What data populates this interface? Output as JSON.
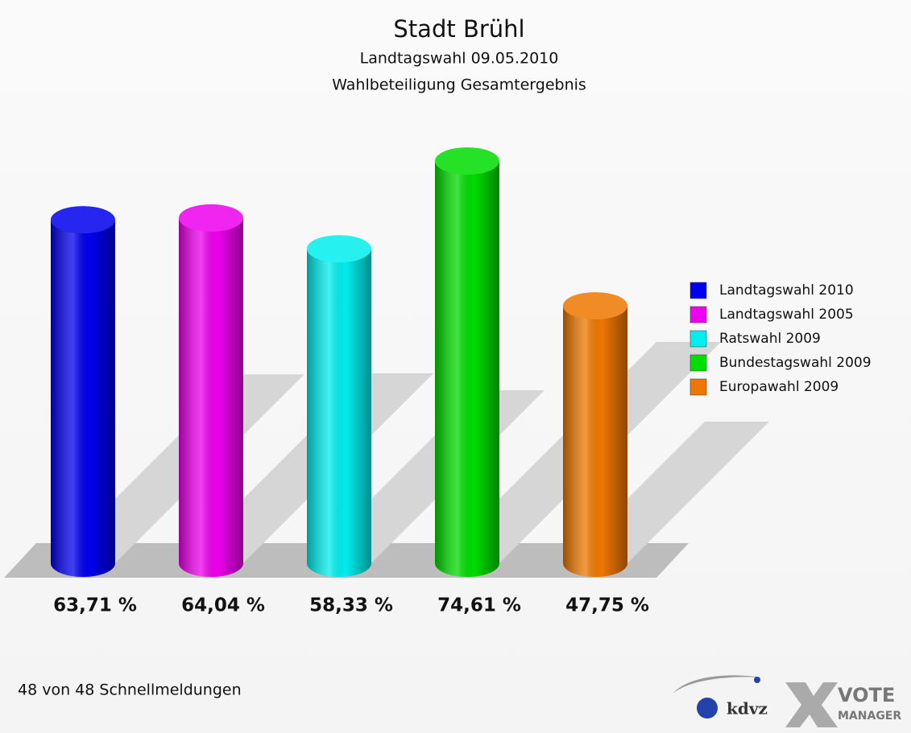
{
  "chart_data": {
    "type": "cylinder",
    "title": "Stadt Brühl",
    "subtitle": "Landtagswahl 09.05.2010",
    "subtitle2": "Wahlbeteiligung Gesamtergebnis",
    "categories": [
      "Landtagswahl 2010",
      "Landtagswahl 2005",
      "Ratswahl 2009",
      "Bundestagswahl 2009",
      "Europawahl 2009"
    ],
    "values": [
      63.71,
      64.04,
      58.33,
      74.61,
      47.75
    ],
    "value_labels": [
      "63,71 %",
      "64,04 %",
      "58,33 %",
      "74,61 %",
      "47,75 %"
    ],
    "colors": [
      "#0000ee",
      "#ee00ee",
      "#00eeee",
      "#00dd00",
      "#ee7700"
    ],
    "legend": "right",
    "footer": "48 von 48 Schnellmeldungen",
    "logo_texts": [
      "kdvz",
      "VOTE",
      "MANAGER"
    ]
  }
}
